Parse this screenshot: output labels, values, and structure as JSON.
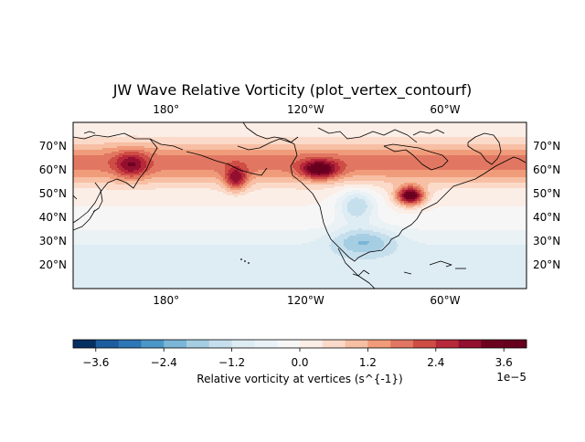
{
  "chart_data": {
    "type": "heatmap",
    "subtype": "filled-contour-map",
    "title": "JW Wave Relative Vorticity (plot_vertex_contourf)",
    "map": {
      "projection": "PlateCarree",
      "lon_range": [
        140,
        335
      ],
      "lat_range": [
        10,
        80
      ],
      "coastlines": true,
      "x_tick_labels": [
        "180°",
        "120°W",
        "60°W"
      ],
      "x_tick_values": [
        180,
        240,
        300
      ],
      "y_tick_labels": [
        "20°N",
        "30°N",
        "40°N",
        "50°N",
        "60°N",
        "70°N"
      ],
      "y_tick_values": [
        20,
        30,
        40,
        50,
        60,
        70
      ]
    },
    "colormap": "RdBu_r",
    "levels_scaled": [
      -4.0,
      -3.6,
      -3.2,
      -2.8,
      -2.4,
      -2.0,
      -1.6,
      -1.2,
      -0.8,
      -0.4,
      0.0,
      0.4,
      0.8,
      1.2,
      1.6,
      2.0,
      2.4,
      2.8,
      3.2,
      3.6,
      4.0
    ],
    "level_colors": [
      "#053061",
      "#1c5d9f",
      "#2e76b6",
      "#4b97c8",
      "#7bb6d6",
      "#a5cee3",
      "#c6dfed",
      "#deecf4",
      "#ebf2f6",
      "#f7f6f6",
      "#fbeee7",
      "#fbdac9",
      "#f7bfa4",
      "#f09c7b",
      "#e17762",
      "#ce4d45",
      "#b7283a",
      "#920f2f",
      "#6d0220",
      "#67001f"
    ],
    "colorbar": {
      "label": "Relative vorticity at vertices (s^{-1})",
      "tick_labels": [
        "−3.6",
        "−2.4",
        "−1.2",
        "0.0",
        "1.2",
        "2.4",
        "3.6"
      ],
      "tick_values": [
        -3.6,
        -2.4,
        -1.2,
        0.0,
        1.2,
        2.4,
        3.6
      ],
      "offset_text": "1e−5"
    },
    "features_scaled_1e-5": [
      {
        "feature": "mid-latitude positive band",
        "lat": 63,
        "value": 1.8
      },
      {
        "feature": "positive maximum",
        "lon": 165,
        "lat": 62,
        "value": 2.2
      },
      {
        "feature": "positive maximum",
        "lon": 210,
        "lat": 56,
        "value": 2.5
      },
      {
        "feature": "positive maximum",
        "lon": 246,
        "lat": 60,
        "value": 3.0
      },
      {
        "feature": "positive maximum",
        "lon": 285,
        "lat": 49,
        "value": 3.7
      },
      {
        "feature": "negative minimum",
        "lon": 262,
        "lat": 45,
        "value": -1.6
      },
      {
        "feature": "negative minimum",
        "lon": 265,
        "lat": 30,
        "value": -1.3
      },
      {
        "feature": "subtropical band",
        "lat": 20,
        "value": -1.0
      }
    ]
  }
}
